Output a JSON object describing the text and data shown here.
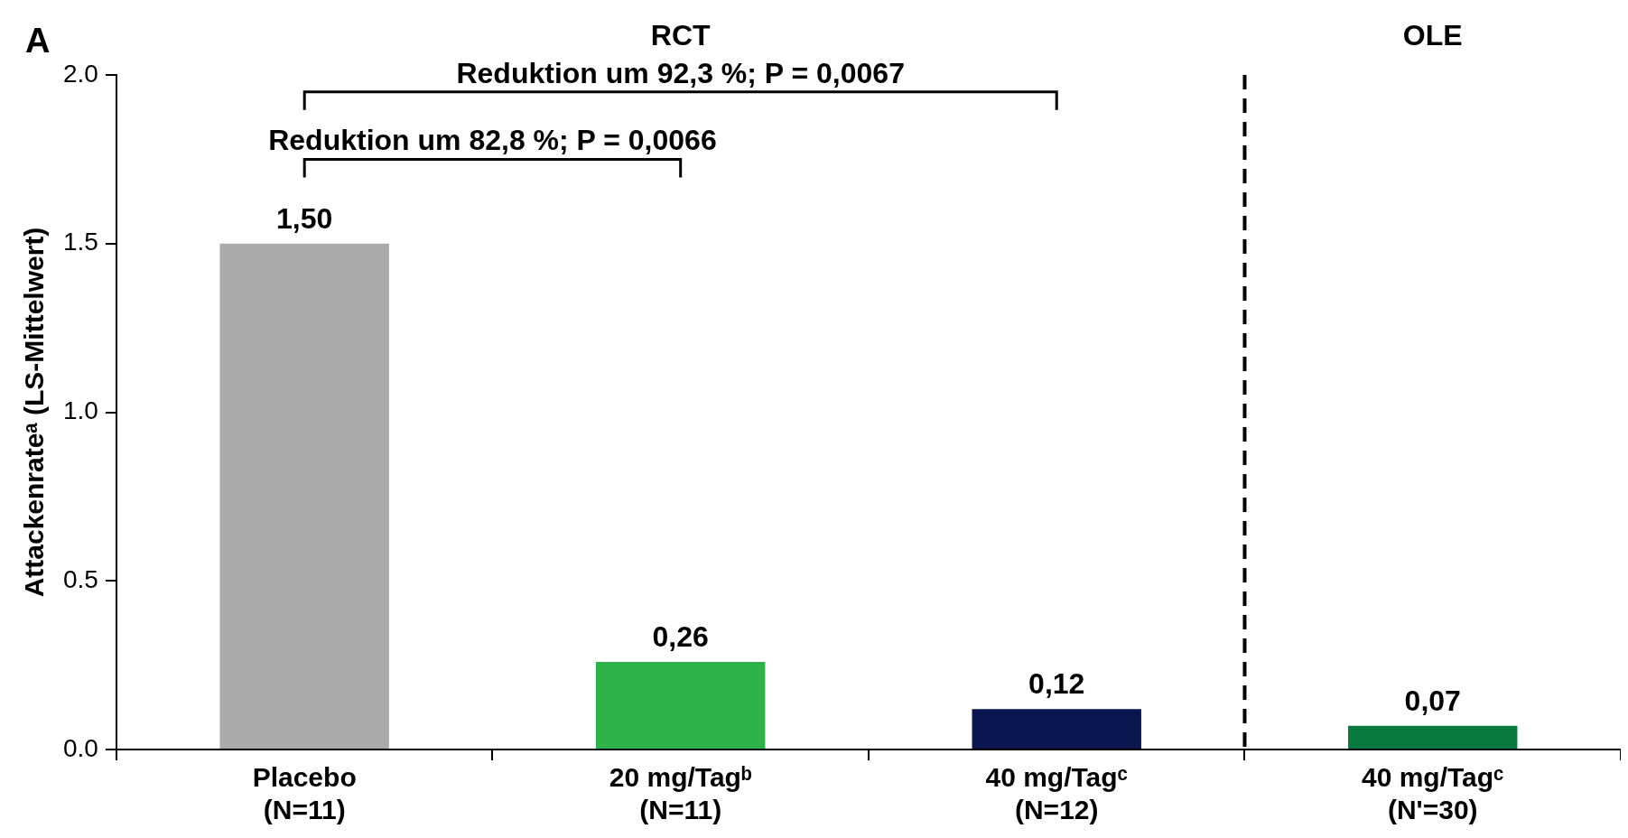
{
  "chart_data": {
    "type": "bar",
    "categories": [
      "Placebo\n(N=11)",
      "20 mg/Tagᵇ\n(N=11)",
      "40 mg/Tagᶜ\n(N=12)",
      "40 mg/Tagᶜ\n(N'=30)"
    ],
    "values": [
      1.5,
      0.26,
      0.12,
      0.07
    ],
    "colors": [
      "#aaaaaa",
      "#2db34a",
      "#0a1650",
      "#087a3e"
    ],
    "value_labels": [
      "1,50",
      "0,26",
      "0,12",
      "0,07"
    ],
    "ylabel": "Attackenrateᵃ (LS-Mittelwert)",
    "ylim": [
      0,
      2
    ],
    "yticks": [
      {
        "value": 0,
        "label": "0.0"
      },
      {
        "value": 0.5,
        "label": "0.5"
      },
      {
        "value": 1,
        "label": "1.0"
      },
      {
        "value": 1.5,
        "label": "1.5"
      },
      {
        "value": 2,
        "label": "2.0"
      }
    ],
    "grid": false,
    "legend": false,
    "annotations": [
      "A",
      "RCT",
      "OLE",
      "Reduktion um 82,8 %; P = 0,0066",
      "Reduktion um 92,3 %; P = 0,0067"
    ]
  }
}
